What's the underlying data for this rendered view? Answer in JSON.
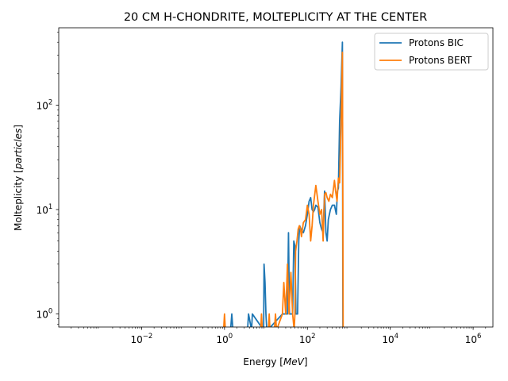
{
  "chart_data": {
    "type": "line",
    "title": "20 CM H-CHONDRITE, MOLTEPLICITY AT THE CENTER",
    "xlabel": "Energy [MeV]",
    "xlabel_plain": "Energy [",
    "xlabel_unit": "MeV",
    "xlabel_close": "]",
    "ylabel_plain": "Molteplicity [",
    "ylabel_unit": "particles",
    "ylabel_close": "]",
    "xscale": "log",
    "yscale": "log",
    "xlim": [
      0.0001,
      3000000
    ],
    "ylim": [
      0.75,
      550
    ],
    "x_ticks": [
      {
        "value": 0.01,
        "base": "10",
        "exp": "−2"
      },
      {
        "value": 1,
        "base": "10",
        "exp": "0"
      },
      {
        "value": 100,
        "base": "10",
        "exp": "2"
      },
      {
        "value": 10000,
        "base": "10",
        "exp": "4"
      },
      {
        "value": 1000000,
        "base": "10",
        "exp": "6"
      }
    ],
    "y_ticks": [
      {
        "value": 1,
        "base": "10",
        "exp": "0"
      },
      {
        "value": 10,
        "base": "10",
        "exp": "1"
      },
      {
        "value": 100,
        "base": "10",
        "exp": "2"
      }
    ],
    "grid": false,
    "legend_position": "top-right",
    "series": [
      {
        "name": "Protons BIC",
        "color": "#1f77b4",
        "x": [
          1.4,
          1.5,
          1.6,
          3.6,
          3.8,
          4.5,
          4.7,
          8.8,
          9.0,
          9.5,
          10.0,
          10.5,
          11.0,
          25,
          30,
          33,
          35,
          37,
          39,
          41,
          44,
          47,
          50,
          53,
          55,
          58,
          62,
          65,
          70,
          80,
          90,
          100,
          110,
          120,
          130,
          140,
          150,
          160,
          180,
          200,
          220,
          240,
          260,
          280,
          300,
          320,
          340,
          360,
          380,
          400,
          450,
          500,
          530,
          560,
          600,
          650,
          700,
          720,
          750,
          760
        ],
        "y": [
          0.7,
          1.0,
          0.7,
          0.7,
          1.0,
          0.7,
          1.0,
          0.7,
          3.0,
          2.0,
          1.0,
          0.7,
          0.7,
          1.0,
          1.0,
          1.0,
          6.0,
          1.0,
          1.0,
          1.0,
          1.0,
          5.0,
          4.5,
          1.0,
          1.0,
          1.0,
          5.0,
          7.0,
          6.5,
          6.0,
          7.0,
          9.0,
          12.0,
          13.0,
          10.0,
          9.5,
          10.0,
          11.0,
          10.5,
          7.5,
          6.5,
          6.0,
          15.0,
          6.0,
          5.0,
          8.0,
          9.0,
          10.0,
          10.5,
          11.0,
          11.0,
          9.0,
          15.0,
          16.0,
          70.0,
          150.0,
          400.0,
          0.7,
          0.7,
          0.7
        ]
      },
      {
        "name": "Protons BERT",
        "color": "#ff7f0e",
        "x": [
          0.95,
          1.0,
          1.05,
          7.5,
          7.8,
          8.2,
          11.5,
          12.0,
          12.5,
          16,
          17,
          18,
          25,
          27,
          30,
          33,
          36,
          40,
          44,
          48,
          50,
          52,
          56,
          60,
          64,
          68,
          72,
          76,
          80,
          90,
          100,
          110,
          120,
          130,
          140,
          160,
          180,
          200,
          220,
          240,
          260,
          280,
          300,
          330,
          360,
          400,
          450,
          480,
          520,
          560,
          600,
          650,
          700,
          730,
          750,
          760
        ],
        "y": [
          0.7,
          1.0,
          0.7,
          0.7,
          1.0,
          0.7,
          0.7,
          1.0,
          0.7,
          0.7,
          1.0,
          0.7,
          1.0,
          2.0,
          1.0,
          3.0,
          1.0,
          2.5,
          1.0,
          0.7,
          1.0,
          4.0,
          5.0,
          6.5,
          7.0,
          6.5,
          5.5,
          6.5,
          7.5,
          8.0,
          11.0,
          9.0,
          5.0,
          7.0,
          11.0,
          17.0,
          12.0,
          9.0,
          10.0,
          5.0,
          14.0,
          14.5,
          13.0,
          12.0,
          14.0,
          13.0,
          19.0,
          15.0,
          12.0,
          20.0,
          18.0,
          70.0,
          320.0,
          0.7,
          0.7,
          0.7
        ]
      }
    ]
  }
}
